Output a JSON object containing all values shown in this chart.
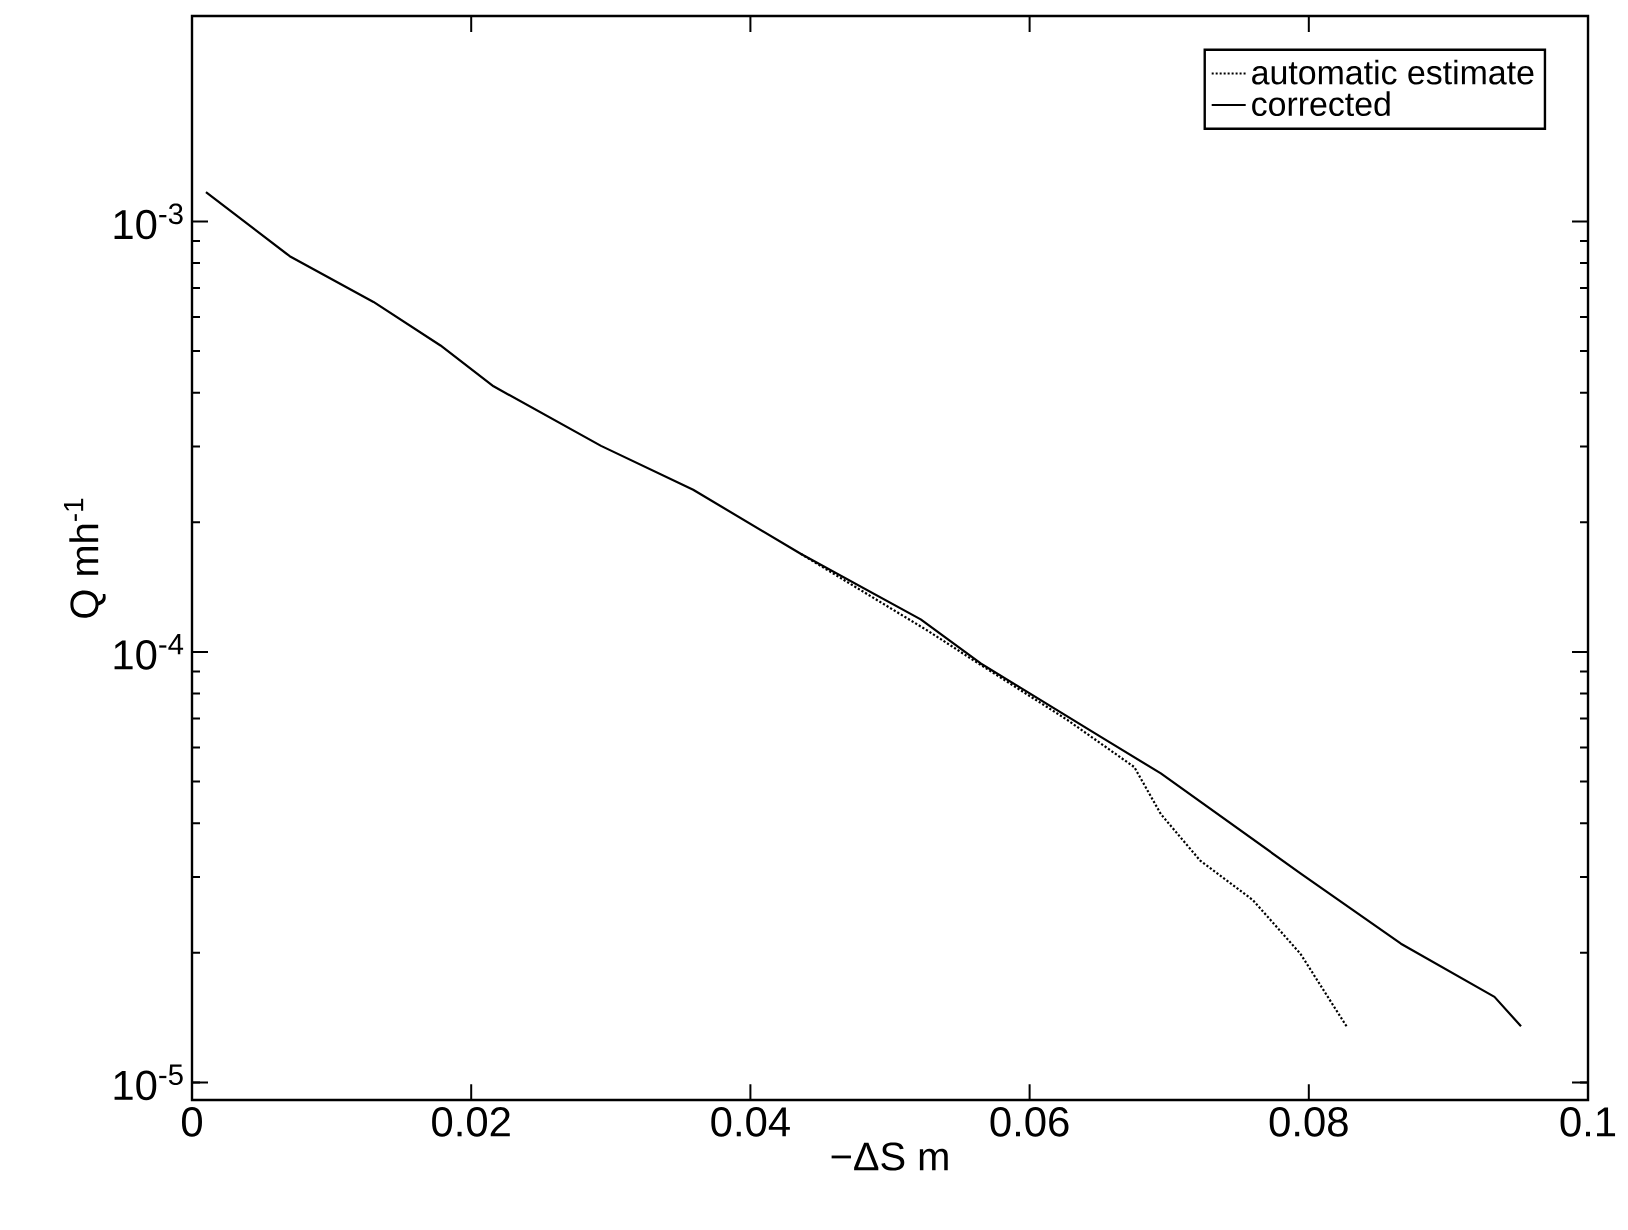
{
  "chart_data": {
    "type": "line",
    "xlabel": "−ΔS   m",
    "ylabel": "Q   mh$^{-1}$",
    "log": "y",
    "legend": "top right",
    "grid": false,
    "marker": "none",
    "xlim": [
      0,
      0.1
    ],
    "ylim": [
      9.1e-06,
      0.003
    ],
    "xticks": [
      0,
      0.02,
      0.04,
      0.06,
      0.08,
      0.1
    ],
    "yticks": [
      {
        "value": 1e-05,
        "label": "10$^{-5}$"
      },
      {
        "value": 0.0001,
        "label": "10$^{-4}$"
      },
      {
        "value": 0.001,
        "label": "10$^{-3}$"
      }
    ],
    "series": [
      {
        "name": "automatic estimate",
        "color": "#000000",
        "line_style": "dotted",
        "x": [
          0.0436,
          0.0527,
          0.0559,
          0.0627,
          0.0675,
          0.0694,
          0.0722,
          0.076,
          0.0794,
          0.0827
        ],
        "values": [
          0.000169,
          0.000112,
          9.6e-05,
          6.95e-05,
          5.4e-05,
          4.2e-05,
          3.28e-05,
          2.65e-05,
          1.99e-05,
          1.35e-05
        ]
      },
      {
        "name": "corrected",
        "color": "#000000",
        "line_style": "solid",
        "x": [
          0.001,
          0.007,
          0.013,
          0.0178,
          0.0216,
          0.0293,
          0.0359,
          0.0436,
          0.0522,
          0.0565,
          0.0651,
          0.0694,
          0.0794,
          0.0866,
          0.0933,
          0.0952
        ],
        "values": [
          0.00117,
          0.00083,
          0.00065,
          0.000515,
          0.000414,
          0.000301,
          0.000238,
          0.000169,
          0.000119,
          9.4e-05,
          6.35e-05,
          5.22e-05,
          3.06e-05,
          2.1e-05,
          1.58e-05,
          1.35e-05
        ]
      }
    ]
  }
}
